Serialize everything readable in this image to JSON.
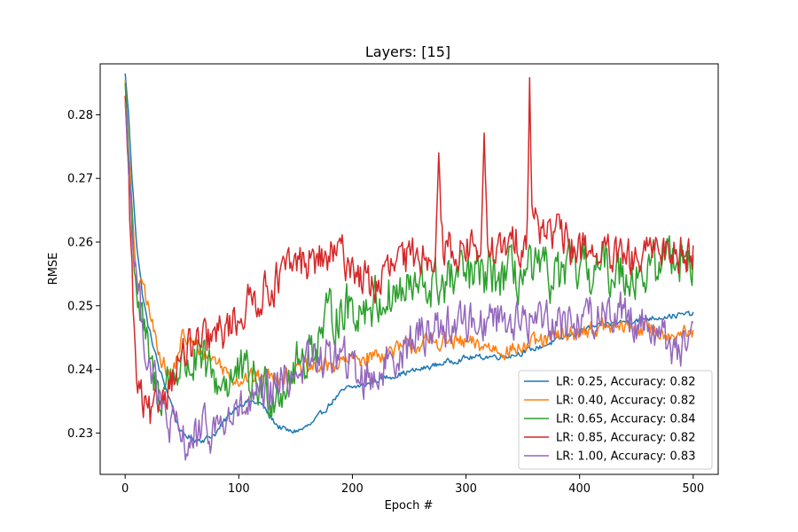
{
  "chart_data": {
    "type": "line",
    "title": "Layers: [15]",
    "xlabel": "Epoch #",
    "ylabel": "RMSE",
    "xlim": [
      -22,
      522
    ],
    "ylim": [
      0.2235,
      0.288
    ],
    "xticks": [
      0,
      100,
      200,
      300,
      400,
      500
    ],
    "yticks": [
      0.23,
      0.24,
      0.25,
      0.26,
      0.27,
      0.28
    ],
    "xtick_labels": [
      "0",
      "100",
      "200",
      "300",
      "400",
      "500"
    ],
    "ytick_labels": [
      "0.23",
      "0.24",
      "0.25",
      "0.26",
      "0.27",
      "0.28"
    ],
    "grid": false,
    "legend_position": "lower-right",
    "series": [
      {
        "name": "LR: 0.25, Accuracy: 0.82",
        "color": "#1f77b4",
        "noise": 0.0004,
        "points": [
          [
            0,
            0.2865
          ],
          [
            3,
            0.28
          ],
          [
            6,
            0.27
          ],
          [
            10,
            0.26
          ],
          [
            15,
            0.252
          ],
          [
            20,
            0.247
          ],
          [
            30,
            0.24
          ],
          [
            40,
            0.235
          ],
          [
            45,
            0.232
          ],
          [
            50,
            0.2298
          ],
          [
            55,
            0.2295
          ],
          [
            60,
            0.229
          ],
          [
            70,
            0.229
          ],
          [
            80,
            0.23
          ],
          [
            90,
            0.2325
          ],
          [
            100,
            0.2345
          ],
          [
            110,
            0.235
          ],
          [
            120,
            0.2345
          ],
          [
            128,
            0.2325
          ],
          [
            135,
            0.231
          ],
          [
            145,
            0.2302
          ],
          [
            155,
            0.2305
          ],
          [
            165,
            0.2315
          ],
          [
            175,
            0.2335
          ],
          [
            185,
            0.2355
          ],
          [
            195,
            0.237
          ],
          [
            210,
            0.2375
          ],
          [
            225,
            0.2385
          ],
          [
            240,
            0.2392
          ],
          [
            260,
            0.24
          ],
          [
            280,
            0.241
          ],
          [
            300,
            0.2418
          ],
          [
            320,
            0.242
          ],
          [
            340,
            0.2422
          ],
          [
            360,
            0.2432
          ],
          [
            380,
            0.2445
          ],
          [
            400,
            0.246
          ],
          [
            420,
            0.247
          ],
          [
            440,
            0.2475
          ],
          [
            460,
            0.248
          ],
          [
            480,
            0.2484
          ],
          [
            500,
            0.2487
          ]
        ]
      },
      {
        "name": "LR: 0.40, Accuracy: 0.82",
        "color": "#ff7f0e",
        "noise": 0.0012,
        "points": [
          [
            0,
            0.2855
          ],
          [
            4,
            0.272
          ],
          [
            8,
            0.258
          ],
          [
            12,
            0.2525
          ],
          [
            16,
            0.2535
          ],
          [
            20,
            0.25
          ],
          [
            25,
            0.246
          ],
          [
            30,
            0.243
          ],
          [
            35,
            0.2405
          ],
          [
            40,
            0.2385
          ],
          [
            45,
            0.2415
          ],
          [
            50,
            0.245
          ],
          [
            60,
            0.244
          ],
          [
            70,
            0.2425
          ],
          [
            80,
            0.2415
          ],
          [
            90,
            0.2395
          ],
          [
            100,
            0.2385
          ],
          [
            120,
            0.2388
          ],
          [
            140,
            0.2392
          ],
          [
            160,
            0.24
          ],
          [
            180,
            0.2405
          ],
          [
            200,
            0.2415
          ],
          [
            220,
            0.2422
          ],
          [
            240,
            0.243
          ],
          [
            260,
            0.244
          ],
          [
            280,
            0.2445
          ],
          [
            300,
            0.244
          ],
          [
            320,
            0.2435
          ],
          [
            340,
            0.243
          ],
          [
            360,
            0.244
          ],
          [
            380,
            0.245
          ],
          [
            400,
            0.246
          ],
          [
            420,
            0.2465
          ],
          [
            440,
            0.2465
          ],
          [
            460,
            0.2463
          ],
          [
            480,
            0.2458
          ],
          [
            500,
            0.2452
          ]
        ]
      },
      {
        "name": "LR: 0.65, Accuracy: 0.84",
        "color": "#2ca02c",
        "noise": 0.0035,
        "points": [
          [
            0,
            0.285
          ],
          [
            4,
            0.27
          ],
          [
            8,
            0.2575
          ],
          [
            12,
            0.25
          ],
          [
            16,
            0.246
          ],
          [
            20,
            0.242
          ],
          [
            25,
            0.238
          ],
          [
            30,
            0.236
          ],
          [
            40,
            0.239
          ],
          [
            50,
            0.241
          ],
          [
            60,
            0.241
          ],
          [
            70,
            0.24
          ],
          [
            80,
            0.238
          ],
          [
            90,
            0.2385
          ],
          [
            100,
            0.239
          ],
          [
            110,
            0.238
          ],
          [
            120,
            0.237
          ],
          [
            130,
            0.2365
          ],
          [
            140,
            0.238
          ],
          [
            150,
            0.24
          ],
          [
            160,
            0.2425
          ],
          [
            170,
            0.245
          ],
          [
            180,
            0.248
          ],
          [
            190,
            0.2495
          ],
          [
            200,
            0.2495
          ],
          [
            210,
            0.25
          ],
          [
            220,
            0.2505
          ],
          [
            230,
            0.2515
          ],
          [
            240,
            0.252
          ],
          [
            260,
            0.2525
          ],
          [
            280,
            0.2535
          ],
          [
            300,
            0.2545
          ],
          [
            320,
            0.2545
          ],
          [
            340,
            0.2545
          ],
          [
            360,
            0.255
          ],
          [
            380,
            0.2545
          ],
          [
            400,
            0.2555
          ],
          [
            420,
            0.2555
          ],
          [
            440,
            0.2555
          ],
          [
            460,
            0.255
          ],
          [
            470,
            0.2565
          ],
          [
            480,
            0.2585
          ],
          [
            490,
            0.258
          ],
          [
            500,
            0.257
          ]
        ]
      },
      {
        "name": "LR: 0.85, Accuracy: 0.82",
        "color": "#d62728",
        "noise": 0.0028,
        "spikes": [
          [
            276,
            0.276
          ],
          [
            316,
            0.2765
          ],
          [
            356,
            0.2865
          ],
          [
            362,
            0.2635
          ],
          [
            404,
            0.261
          ]
        ],
        "points": [
          [
            0,
            0.283
          ],
          [
            3,
            0.27
          ],
          [
            6,
            0.255
          ],
          [
            8,
            0.245
          ],
          [
            10,
            0.238
          ],
          [
            15,
            0.2345
          ],
          [
            20,
            0.2325
          ],
          [
            25,
            0.232
          ],
          [
            30,
            0.235
          ],
          [
            35,
            0.237
          ],
          [
            40,
            0.2385
          ],
          [
            50,
            0.242
          ],
          [
            60,
            0.2435
          ],
          [
            70,
            0.244
          ],
          [
            80,
            0.245
          ],
          [
            90,
            0.2465
          ],
          [
            100,
            0.2485
          ],
          [
            110,
            0.2505
          ],
          [
            120,
            0.252
          ],
          [
            130,
            0.2535
          ],
          [
            140,
            0.255
          ],
          [
            150,
            0.2565
          ],
          [
            160,
            0.257
          ],
          [
            170,
            0.257
          ],
          [
            180,
            0.2575
          ],
          [
            190,
            0.258
          ],
          [
            200,
            0.2565
          ],
          [
            210,
            0.254
          ],
          [
            220,
            0.253
          ],
          [
            230,
            0.255
          ],
          [
            240,
            0.2565
          ],
          [
            250,
            0.257
          ],
          [
            260,
            0.258
          ],
          [
            270,
            0.259
          ],
          [
            280,
            0.259
          ],
          [
            290,
            0.259
          ],
          [
            300,
            0.259
          ],
          [
            310,
            0.259
          ],
          [
            320,
            0.2595
          ],
          [
            330,
            0.258
          ],
          [
            340,
            0.2595
          ],
          [
            350,
            0.2605
          ],
          [
            360,
            0.262
          ],
          [
            370,
            0.263
          ],
          [
            380,
            0.261
          ],
          [
            390,
            0.2595
          ],
          [
            400,
            0.2585
          ],
          [
            410,
            0.259
          ],
          [
            420,
            0.258
          ],
          [
            430,
            0.2572
          ],
          [
            440,
            0.257
          ],
          [
            450,
            0.257
          ],
          [
            460,
            0.2575
          ],
          [
            470,
            0.26
          ],
          [
            480,
            0.2585
          ],
          [
            490,
            0.2585
          ],
          [
            500,
            0.259
          ]
        ]
      },
      {
        "name": "LR: 1.00, Accuracy: 0.83",
        "color": "#9467bd",
        "noise": 0.003,
        "points": [
          [
            0,
            0.282
          ],
          [
            4,
            0.269
          ],
          [
            8,
            0.258
          ],
          [
            12,
            0.251
          ],
          [
            16,
            0.2465
          ],
          [
            20,
            0.242
          ],
          [
            25,
            0.239
          ],
          [
            30,
            0.234
          ],
          [
            40,
            0.231
          ],
          [
            50,
            0.2285
          ],
          [
            60,
            0.229
          ],
          [
            70,
            0.23
          ],
          [
            80,
            0.231
          ],
          [
            90,
            0.232
          ],
          [
            100,
            0.233
          ],
          [
            110,
            0.234
          ],
          [
            120,
            0.235
          ],
          [
            130,
            0.2365
          ],
          [
            140,
            0.2385
          ],
          [
            150,
            0.24
          ],
          [
            160,
            0.241
          ],
          [
            170,
            0.2415
          ],
          [
            180,
            0.242
          ],
          [
            190,
            0.242
          ],
          [
            200,
            0.24
          ],
          [
            210,
            0.239
          ],
          [
            220,
            0.239
          ],
          [
            230,
            0.241
          ],
          [
            240,
            0.243
          ],
          [
            250,
            0.244
          ],
          [
            260,
            0.2455
          ],
          [
            270,
            0.2465
          ],
          [
            280,
            0.247
          ],
          [
            290,
            0.247
          ],
          [
            300,
            0.2475
          ],
          [
            310,
            0.2475
          ],
          [
            320,
            0.248
          ],
          [
            330,
            0.2485
          ],
          [
            340,
            0.248
          ],
          [
            350,
            0.247
          ],
          [
            360,
            0.248
          ],
          [
            370,
            0.2485
          ],
          [
            380,
            0.248
          ],
          [
            390,
            0.247
          ],
          [
            400,
            0.248
          ],
          [
            410,
            0.2485
          ],
          [
            420,
            0.249
          ],
          [
            430,
            0.249
          ],
          [
            440,
            0.249
          ],
          [
            450,
            0.248
          ],
          [
            460,
            0.247
          ],
          [
            470,
            0.2455
          ],
          [
            480,
            0.244
          ],
          [
            490,
            0.2435
          ],
          [
            500,
            0.244
          ]
        ]
      }
    ]
  }
}
